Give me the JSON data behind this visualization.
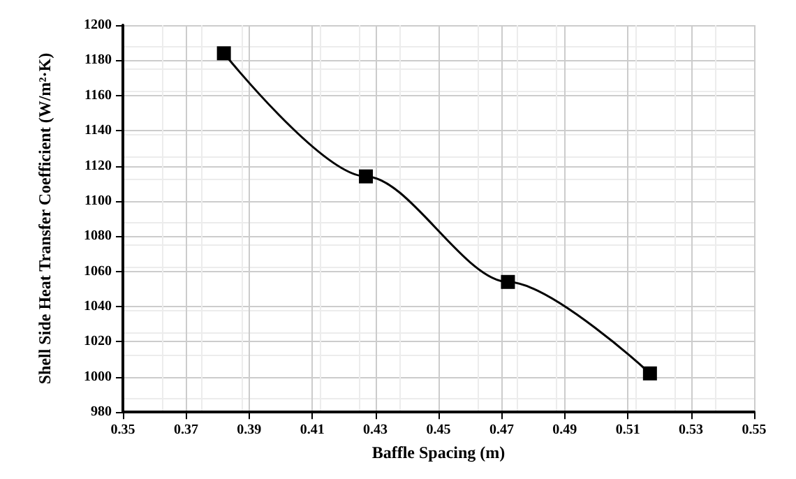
{
  "chart_data": {
    "type": "line",
    "xlabel": "Baffle Spacing (m)",
    "ylabel": "Shell Side Heat Transfer Coefficient (W/m²·K)",
    "x": [
      0.382,
      0.427,
      0.472,
      0.517
    ],
    "series": [
      {
        "color": "#000000",
        "values": [
          1184,
          1114,
          1054,
          1002
        ]
      }
    ],
    "xlim": [
      0.35,
      0.55
    ],
    "xticks": [
      0.35,
      0.37,
      0.39,
      0.41,
      0.43,
      0.45,
      0.47,
      0.49,
      0.51,
      0.53,
      0.55
    ],
    "ylim": [
      980,
      1200
    ],
    "yticks": [
      980,
      1000,
      1020,
      1040,
      1060,
      1080,
      1100,
      1120,
      1140,
      1160,
      1180,
      1200
    ],
    "grid": true,
    "marker": "square",
    "line_style": "solid"
  }
}
